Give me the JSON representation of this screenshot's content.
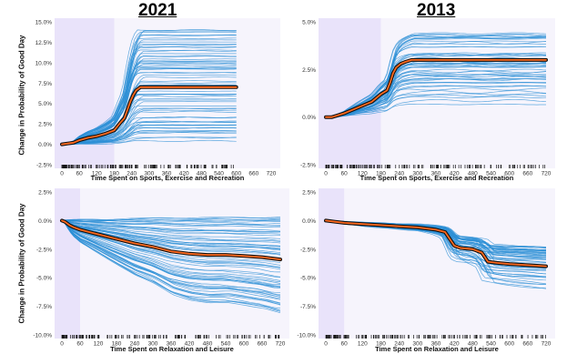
{
  "titles": {
    "left": "2021",
    "right": "2013"
  },
  "shared_ylabel": "Change in Probability of Good Day",
  "chart_data": [
    {
      "id": "sports-2021",
      "type": "line",
      "chart_kind": "ICE plot with mean (PDP) curve",
      "year": "2021",
      "xlabel": "Time Spent on Sports, Exercise and Recreation",
      "ylabel": "Change in Probability of Good Day",
      "xlim": [
        0,
        720
      ],
      "ylim": [
        -2.5,
        15.0
      ],
      "xticks": [
        0,
        60,
        120,
        180,
        240,
        300,
        360,
        420,
        480,
        540,
        600,
        660,
        720
      ],
      "yticks": [
        -2.5,
        0.0,
        2.5,
        5.0,
        7.5,
        10.0,
        12.5,
        15.0
      ],
      "ytick_labels": [
        "-2.5%",
        "0.0%",
        "2.5%",
        "5.0%",
        "7.5%",
        "10.0%",
        "12.5%",
        "15.0%"
      ],
      "highlight_xrange": [
        0,
        180
      ],
      "x_end": 600,
      "mean_curve": {
        "x": [
          0,
          20,
          40,
          60,
          90,
          120,
          150,
          180,
          200,
          215,
          225,
          235,
          245,
          255,
          270,
          300,
          600
        ],
        "y": [
          0.0,
          0.1,
          0.2,
          0.5,
          0.8,
          1.0,
          1.3,
          1.7,
          2.6,
          3.2,
          4.2,
          5.2,
          6.0,
          6.6,
          7.0,
          7.0,
          7.0
        ]
      },
      "ice_lines": {
        "count": 70,
        "final_range": [
          0.3,
          14.0
        ]
      }
    },
    {
      "id": "sports-2013",
      "type": "line",
      "chart_kind": "ICE plot with mean (PDP) curve",
      "year": "2013",
      "xlabel": "Time Spent on Sports, Exercise and Recreation",
      "ylabel": "",
      "xlim": [
        0,
        720
      ],
      "ylim": [
        -2.5,
        5.0
      ],
      "xticks": [
        0,
        60,
        120,
        180,
        240,
        300,
        360,
        420,
        480,
        540,
        600,
        660,
        720
      ],
      "yticks": [
        -2.5,
        0.0,
        2.5,
        5.0
      ],
      "ytick_labels": [
        "-2.5%",
        "0.0%",
        "2.5%",
        "5.0%"
      ],
      "highlight_xrange": [
        0,
        180
      ],
      "x_end": 720,
      "mean_curve": {
        "x": [
          0,
          20,
          40,
          60,
          90,
          120,
          150,
          180,
          200,
          210,
          220,
          230,
          245,
          260,
          280,
          300,
          720
        ],
        "y": [
          0.0,
          0.0,
          0.1,
          0.2,
          0.4,
          0.6,
          0.8,
          1.2,
          1.4,
          1.8,
          2.3,
          2.6,
          2.8,
          2.9,
          3.0,
          3.0,
          3.0
        ]
      },
      "ice_lines": {
        "count": 55,
        "final_range": [
          0.6,
          4.4
        ]
      }
    },
    {
      "id": "leisure-2021",
      "type": "line",
      "chart_kind": "ICE plot with mean (PDP) curve",
      "year": "2021",
      "xlabel": "Time Spent on Relaxation and Leisure",
      "ylabel": "Change in Probability of Good Day",
      "xlim": [
        0,
        720
      ],
      "ylim": [
        -10.0,
        2.5
      ],
      "xticks": [
        0,
        60,
        120,
        180,
        240,
        300,
        360,
        420,
        480,
        540,
        600,
        660,
        720
      ],
      "yticks": [
        -10.0,
        -7.5,
        -5.0,
        -2.5,
        0.0,
        2.5
      ],
      "ytick_labels": [
        "-10.0%",
        "-7.5%",
        "-5.0%",
        "-2.5%",
        "0.0%",
        "2.5%"
      ],
      "highlight_xrange": [
        0,
        60
      ],
      "x_end": 720,
      "mean_curve": {
        "x": [
          0,
          10,
          25,
          40,
          60,
          90,
          120,
          180,
          240,
          300,
          360,
          420,
          480,
          540,
          600,
          660,
          720
        ],
        "y": [
          0.0,
          -0.1,
          -0.4,
          -0.6,
          -0.8,
          -1.0,
          -1.2,
          -1.6,
          -2.0,
          -2.3,
          -2.7,
          -2.9,
          -3.0,
          -3.0,
          -3.1,
          -3.2,
          -3.4
        ]
      },
      "ice_lines": {
        "count": 70,
        "final_range": [
          -8.6,
          0.3
        ]
      }
    },
    {
      "id": "leisure-2013",
      "type": "line",
      "chart_kind": "ICE plot with mean (PDP) curve",
      "year": "2013",
      "xlabel": "Time Spent on Relaxation and Leisure",
      "ylabel": "",
      "xlim": [
        0,
        720
      ],
      "ylim": [
        -10.0,
        2.5
      ],
      "xticks": [
        0,
        60,
        120,
        180,
        240,
        300,
        360,
        420,
        480,
        540,
        600,
        660,
        720
      ],
      "yticks": [
        -10.0,
        -7.5,
        -5.0,
        -2.5,
        0.0,
        2.5
      ],
      "ytick_labels": [
        "-10.0%",
        "-7.5%",
        "-5.0%",
        "-2.5%",
        "0.0%",
        "2.5%"
      ],
      "highlight_xrange": [
        0,
        60
      ],
      "x_end": 720,
      "mean_curve": {
        "x": [
          0,
          30,
          60,
          120,
          180,
          240,
          300,
          360,
          390,
          410,
          420,
          440,
          480,
          510,
          530,
          560,
          600,
          660,
          720
        ],
        "y": [
          0.0,
          -0.1,
          -0.2,
          -0.3,
          -0.4,
          -0.5,
          -0.6,
          -0.8,
          -1.0,
          -1.8,
          -2.2,
          -2.4,
          -2.5,
          -2.8,
          -3.6,
          -3.7,
          -3.8,
          -3.9,
          -4.0
        ]
      },
      "ice_lines": {
        "count": 55,
        "final_range": [
          -6.0,
          -2.3
        ]
      }
    }
  ],
  "colors": {
    "ice_line": "#2b8fd6",
    "mean_outline": "#111111",
    "mean_line": "#ff6a1f",
    "highlight": "#e9e3fa",
    "plot_bg": "#f6f4fc",
    "tick_text": "#333333"
  }
}
